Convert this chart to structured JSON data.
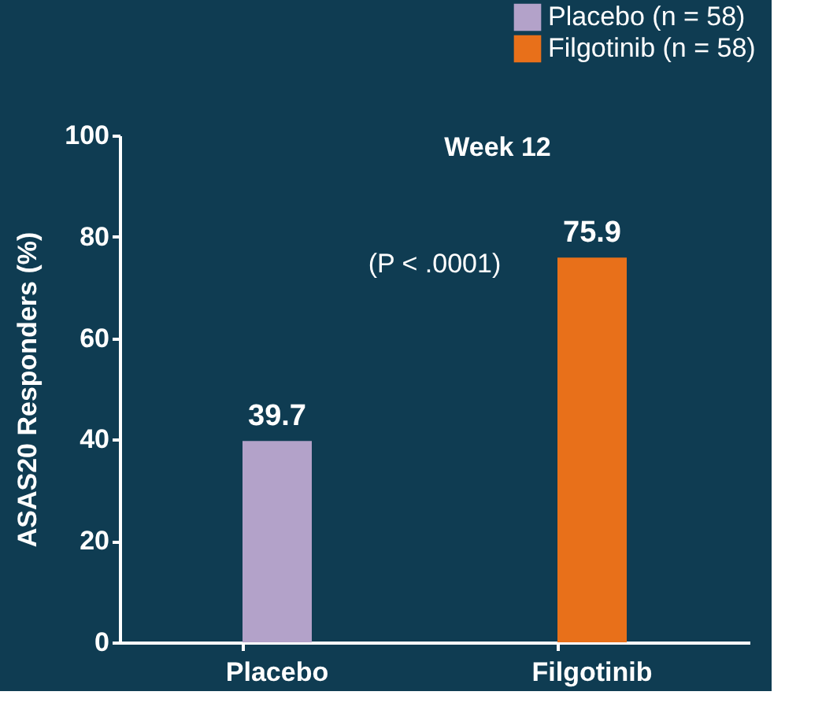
{
  "chart_data": {
    "type": "bar",
    "title": "Week 12",
    "ylabel": "ASAS20 Responders (%)",
    "categories": [
      "Placebo",
      "Filgotinib"
    ],
    "series": [
      {
        "name": "Placebo (n = 58)",
        "color": "#b3a2c9",
        "values": [
          39.7,
          null
        ]
      },
      {
        "name": "Filgotinib (n = 58)",
        "color": "#e8701a",
        "values": [
          null,
          75.9
        ]
      }
    ],
    "ylim": [
      0,
      100
    ],
    "yticks": [
      0,
      20,
      40,
      60,
      80,
      100
    ],
    "grid": false,
    "legend": "top right",
    "data_labels": true,
    "annotations": [
      "(P < .0001)"
    ]
  }
}
